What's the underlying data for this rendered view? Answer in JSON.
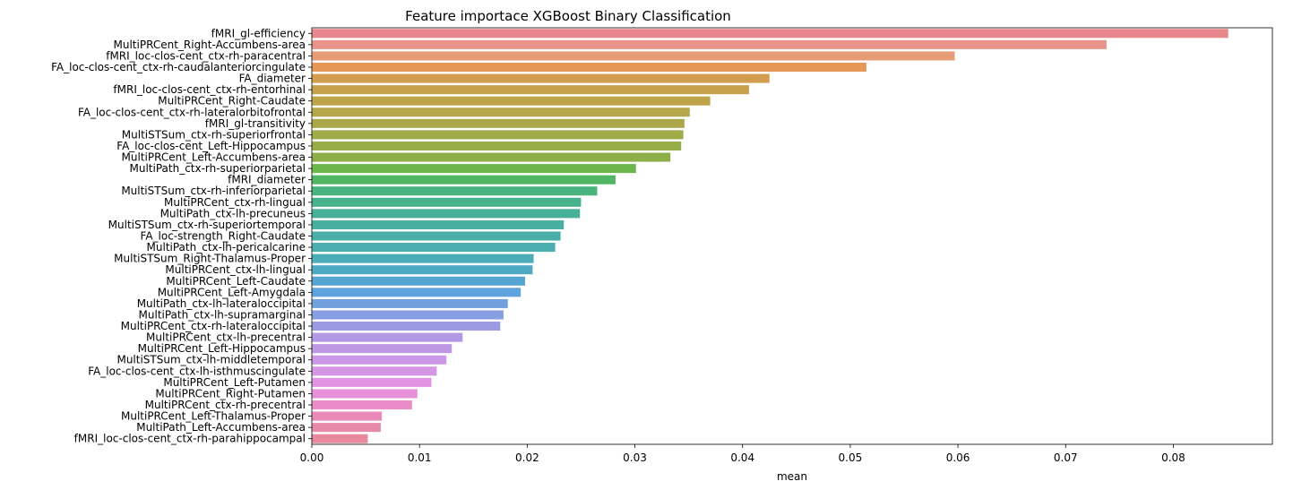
{
  "chart_data": {
    "type": "bar",
    "orientation": "horizontal",
    "title": "Feature importace XGBoost Binary Classification",
    "xlabel": "mean",
    "ylabel": "",
    "xlim": [
      0,
      0.0892
    ],
    "xticks": [
      0.0,
      0.01,
      0.02,
      0.03,
      0.04,
      0.05,
      0.06,
      0.07,
      0.08
    ],
    "xtick_labels": [
      "0.00",
      "0.01",
      "0.02",
      "0.03",
      "0.04",
      "0.05",
      "0.06",
      "0.07",
      "0.08"
    ],
    "grid": false,
    "legend": "none",
    "categories": [
      "fMRI_gl-efficiency",
      "MultiPRCent_Right-Accumbens-area",
      "fMRI_loc-clos-cent_ctx-rh-paracentral",
      "FA_loc-clos-cent_ctx-rh-caudalanteriorcingulate",
      "FA_diameter",
      "fMRI_loc-clos-cent_ctx-rh-entorhinal",
      "MultiPRCent_Right-Caudate",
      "FA_loc-clos-cent_ctx-rh-lateralorbitofrontal",
      "fMRI_gl-transitivity",
      "MultiSTSum_ctx-rh-superiorfrontal",
      "FA_loc-clos-cent_Left-Hippocampus",
      "MultiPRCent_Left-Accumbens-area",
      "MultiPath_ctx-rh-superiorparietal",
      "fMRI_diameter",
      "MultiSTSum_ctx-rh-inferiorparietal",
      "MultiPRCent_ctx-rh-lingual",
      "MultiPath_ctx-lh-precuneus",
      "MultiSTSum_ctx-rh-superiortemporal",
      "FA_loc-strength_Right-Caudate",
      "MultiPath_ctx-lh-pericalcarine",
      "MultiSTSum_Right-Thalamus-Proper",
      "MultiPRCent_ctx-lh-lingual",
      "MultiPRCent_Left-Caudate",
      "MultiPRCent_Left-Amygdala",
      "MultiPath_ctx-lh-lateraloccipital",
      "MultiPath_ctx-lh-supramarginal",
      "MultiPRCent_ctx-rh-lateraloccipital",
      "MultiPRCent_ctx-lh-precentral",
      "MultiPRCent_Left-Hippocampus",
      "MultiSTSum_ctx-lh-middletemporal",
      "FA_loc-clos-cent_ctx-lh-isthmuscingulate",
      "MultiPRCent_Left-Putamen",
      "MultiPRCent_Right-Putamen",
      "MultiPRCent_ctx-rh-precentral",
      "MultiPRCent_Left-Thalamus-Proper",
      "MultiPath_Left-Accumbens-area",
      "fMRI_loc-clos-cent_ctx-rh-parahippocampal"
    ],
    "values": [
      0.0851,
      0.0738,
      0.0597,
      0.0515,
      0.0425,
      0.0406,
      0.037,
      0.0351,
      0.0346,
      0.0345,
      0.0343,
      0.0333,
      0.0301,
      0.0282,
      0.0265,
      0.025,
      0.0249,
      0.0234,
      0.0231,
      0.0226,
      0.0206,
      0.0205,
      0.0198,
      0.0194,
      0.0182,
      0.0178,
      0.0175,
      0.014,
      0.013,
      0.0125,
      0.0116,
      0.0111,
      0.0098,
      0.0093,
      0.0065,
      0.0064,
      0.0052
    ],
    "colors": [
      "#e8878b",
      "#e8938a",
      "#e79c78",
      "#e59855",
      "#d29d4e",
      "#c6a04c",
      "#bda44b",
      "#b5a74a",
      "#aaa74a",
      "#a1ab48",
      "#98ad48",
      "#8eae48",
      "#6cb64d",
      "#50b663",
      "#4ab27c",
      "#49b18b",
      "#48b096",
      "#49b0a0",
      "#49aea7",
      "#4badb0",
      "#4cacb8",
      "#4eaac3",
      "#55a5d2",
      "#5fa3dc",
      "#72a0dd",
      "#879ee0",
      "#9c9ae3",
      "#b398e6",
      "#bf98e5",
      "#cb97e6",
      "#d596e4",
      "#e192e3",
      "#e78fd8",
      "#e98cc7",
      "#e98ab8",
      "#e989a9",
      "#e7889d"
    ]
  }
}
